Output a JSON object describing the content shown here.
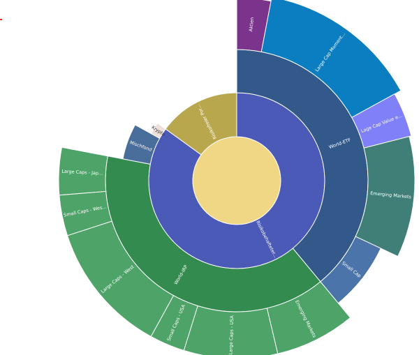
{
  "chart_data": {
    "type": "sunburst",
    "root": {
      "name": "",
      "color": "#f0d786",
      "children": [
        {
          "name": "Risikofreier Por...",
          "value": 15,
          "color": "#b8a74c",
          "children": []
        },
        {
          "name": "Risikobehafteter...",
          "value": 85,
          "color": "#4b59b7",
          "children": [
            {
              "name": "World-ETF",
              "value": 39,
              "color": "#33598a",
              "children": [
                {
                  "name": "Aktien",
                  "value": 3,
                  "color": "#7a348c"
                },
                {
                  "name": "Large Cap Moment...",
                  "value": 14,
                  "color": "#0a7ec0"
                },
                {
                  "name": "Lage Cap Value e...",
                  "value": 4,
                  "color": "#8080f8"
                },
                {
                  "name": "Emerging Markets",
                  "value": 11,
                  "color": "#3f7f78"
                },
                {
                  "name": "Small Cap",
                  "value": 7,
                  "color": "#4a74aa"
                }
              ]
            },
            {
              "name": "World-IRP",
              "value": 39,
              "color": "#348b50",
              "children": [
                {
                  "name": "Emerging Markets",
                  "value": 7.3,
                  "color": "#4ea368"
                },
                {
                  "name": "Large Caps - USA",
                  "value": 8.5,
                  "color": "#4ea368"
                },
                {
                  "name": "Small Caps - USA",
                  "value": 3.2,
                  "color": "#4ea368"
                },
                {
                  "name": "Large Caps - West",
                  "value": 12,
                  "color": "#4ea368"
                },
                {
                  "name": "Small Caps - Wes...",
                  "value": 3.7,
                  "color": "#4ea368"
                },
                {
                  "name": "Large Caps - Jap...",
                  "value": 4.3,
                  "color": "#4ea368"
                }
              ]
            },
            {
              "name": "Mischfond",
              "value": 5,
              "color": "#4a6e9c",
              "children": []
            },
            {
              "name": "Krypto",
              "value": 2,
              "color": "#ede0d8",
              "dark_label": true,
              "children": []
            }
          ]
        }
      ]
    }
  }
}
